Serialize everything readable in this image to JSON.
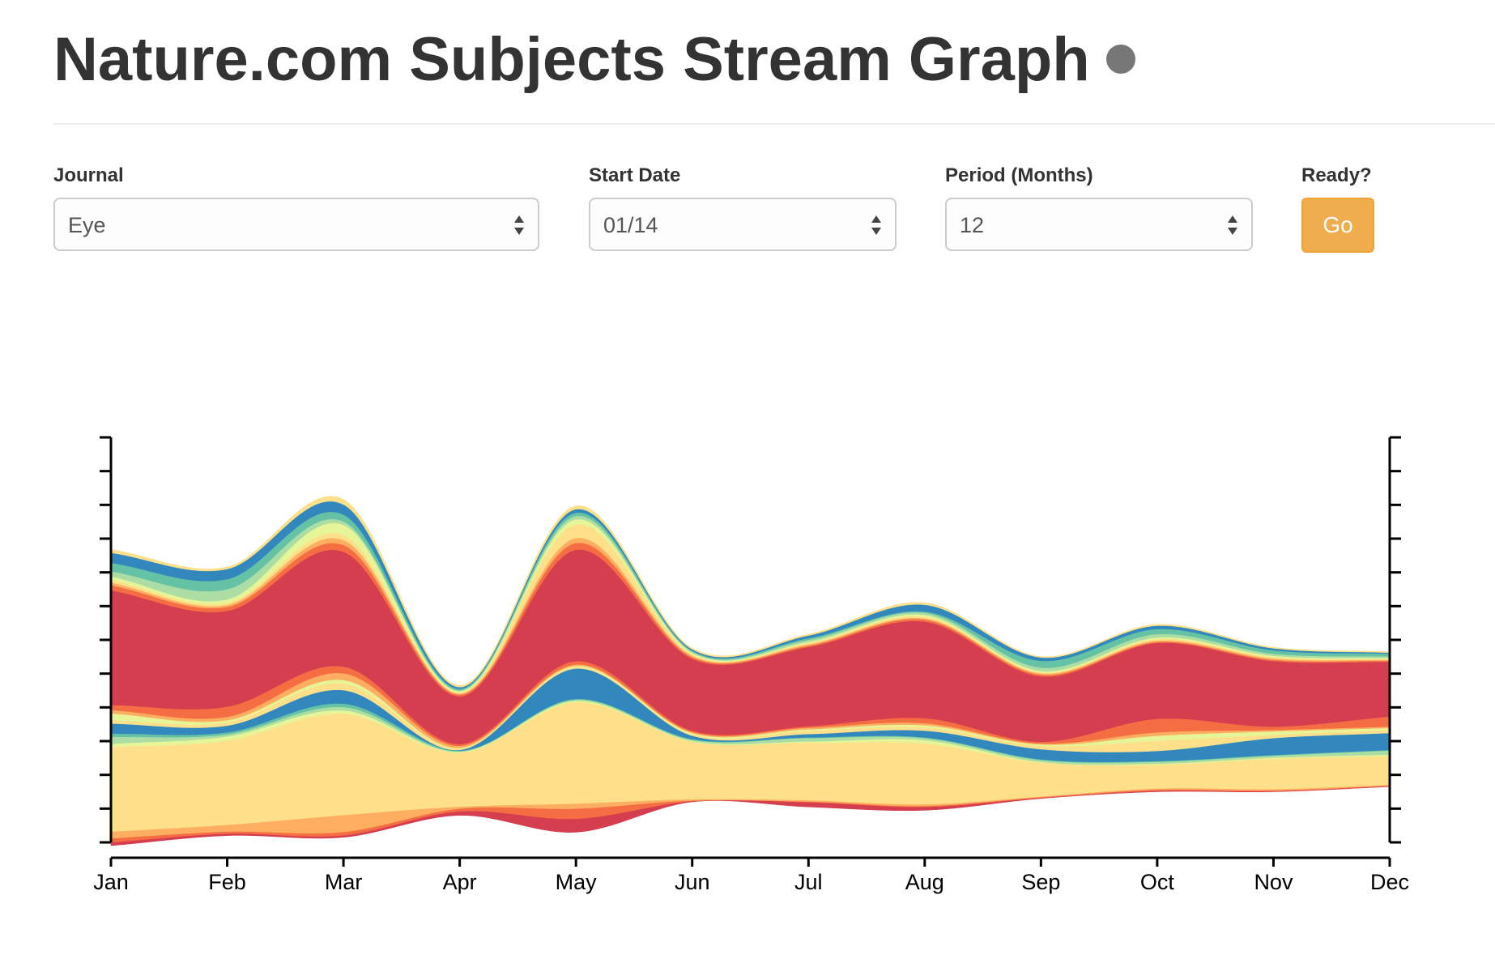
{
  "header": {
    "title": "Nature.com Subjects Stream Graph",
    "info_icon": "info-icon"
  },
  "controls": {
    "journal": {
      "label": "Journal",
      "value": "Eye"
    },
    "start_date": {
      "label": "Start Date",
      "value": "01/14"
    },
    "period": {
      "label": "Period (Months)",
      "value": "12"
    },
    "ready": {
      "label": "Ready?",
      "button": "Go"
    }
  },
  "colors": {
    "accent_button": "#f0ad4e",
    "axis": "#000000"
  },
  "chart_data": {
    "type": "area",
    "subtype": "streamgraph",
    "categories": [
      "Jan",
      "Feb",
      "Mar",
      "Apr",
      "May",
      "Jun",
      "Jul",
      "Aug",
      "Sep",
      "Oct",
      "Nov",
      "Dec"
    ],
    "ylim": [
      -60,
      60
    ],
    "grid": false,
    "legend": "none",
    "layer_colors": [
      "#d53e4f",
      "#f46d43",
      "#fdae61",
      "#fee08b",
      "#e6f598",
      "#abdda4",
      "#66c2a5",
      "#3288bd",
      "#fee08b",
      "#e6f598",
      "#fdae61",
      "#f46d43",
      "#d53e4f"
    ],
    "series": [
      {
        "values": [
          1.0,
          0.6,
          0.6,
          1.2,
          4.0,
          0.2,
          1.4,
          1.0,
          0.2,
          0.3,
          0.2,
          0.2
        ]
      },
      {
        "values": [
          1.2,
          0.6,
          1.0,
          0.8,
          3.0,
          0.2,
          0.2,
          0.3,
          0.2,
          0.3,
          0.2,
          0.1
        ]
      },
      {
        "values": [
          2.0,
          2.0,
          5.0,
          0.6,
          1.5,
          0.4,
          0.4,
          0.5,
          0.2,
          0.4,
          0.4,
          0.3
        ]
      },
      {
        "values": [
          25.0,
          25.0,
          30.0,
          16.0,
          30.0,
          17.0,
          17.0,
          18.0,
          10.0,
          7.0,
          9.0,
          8.5
        ]
      },
      {
        "values": [
          1.0,
          1.2,
          1.0,
          0.2,
          0.4,
          0.2,
          0.4,
          1.0,
          0.2,
          0.3,
          0.3,
          0.4
        ]
      },
      {
        "values": [
          2.0,
          0.6,
          1.0,
          0.2,
          0.4,
          0.4,
          1.0,
          0.6,
          0.6,
          0.6,
          0.6,
          1.2
        ]
      },
      {
        "values": [
          1.0,
          0.6,
          1.0,
          0.2,
          0.2,
          0.2,
          0.2,
          0.2,
          0.2,
          0.2,
          0.2,
          0.2
        ]
      },
      {
        "values": [
          3.0,
          2.0,
          4.0,
          0.2,
          9.0,
          1.0,
          1.0,
          2.0,
          3.0,
          3.0,
          5.0,
          5.0
        ]
      },
      {
        "values": [
          1.0,
          1.0,
          2.0,
          0.4,
          0.5,
          0.4,
          1.0,
          1.0,
          1.0,
          3.0,
          1.0,
          1.0
        ]
      },
      {
        "values": [
          2.0,
          0.6,
          1.0,
          0.2,
          0.3,
          0.4,
          0.4,
          0.6,
          0.4,
          1.5,
          1.0,
          0.5
        ]
      },
      {
        "values": [
          1.0,
          1.0,
          2.0,
          0.6,
          0.4,
          0.3,
          0.5,
          0.6,
          0.3,
          1.0,
          0.4,
          0.4
        ]
      },
      {
        "values": [
          1.5,
          3.0,
          2.0,
          0.5,
          1.0,
          0.4,
          0.4,
          1.5,
          0.5,
          4.0,
          1.0,
          3.0
        ]
      },
      {
        "values": [
          33.0,
          28.0,
          33.0,
          14.0,
          32.0,
          21.0,
          23.0,
          28.0,
          19.0,
          22.0,
          19.0,
          16.0
        ]
      },
      {
        "values": [
          1.0,
          0.4,
          1.0,
          0.2,
          1.0,
          0.3,
          0.5,
          0.6,
          0.4,
          0.5,
          0.4,
          0.2
        ]
      },
      {
        "values": [
          1.5,
          1.2,
          2.0,
          0.5,
          2.0,
          0.5,
          0.4,
          0.6,
          0.5,
          0.3,
          0.4,
          0.3
        ]
      },
      {
        "values": [
          0.8,
          0.6,
          1.5,
          0.3,
          1.5,
          0.4,
          0.4,
          0.4,
          0.4,
          0.4,
          0.4,
          0.3
        ]
      },
      {
        "values": [
          0.8,
          0.6,
          1.5,
          0.3,
          4.0,
          0.5,
          0.4,
          0.5,
          0.3,
          0.5,
          0.4,
          0.2
        ]
      },
      {
        "values": [
          1.0,
          1.0,
          3.0,
          0.4,
          1.5,
          0.4,
          0.3,
          0.5,
          0.4,
          0.4,
          0.4,
          0.3
        ]
      },
      {
        "values": [
          1.5,
          3.0,
          1.0,
          0.3,
          1.0,
          0.3,
          0.6,
          0.6,
          1.0,
          1.0,
          0.6,
          0.5
        ]
      },
      {
        "values": [
          2.5,
          3.0,
          2.0,
          0.4,
          1.0,
          0.3,
          0.5,
          0.4,
          2.0,
          1.5,
          1.0,
          0.8
        ]
      },
      {
        "values": [
          3.0,
          3.0,
          3.0,
          0.5,
          1.0,
          0.4,
          0.8,
          2.0,
          1.0,
          1.0,
          0.6,
          0.3
        ]
      },
      {
        "values": [
          1.0,
          0.6,
          1.5,
          0.5,
          1.0,
          0.4,
          0.4,
          0.6,
          0.3,
          0.4,
          0.3,
          0.3
        ]
      }
    ],
    "baseline": [
      -61.0,
      -58.0,
      -58.5,
      -52.0,
      -57.0,
      -48.0,
      -49.5,
      -50.5,
      -47.0,
      -45.0,
      -45.0,
      -43.5
    ]
  }
}
